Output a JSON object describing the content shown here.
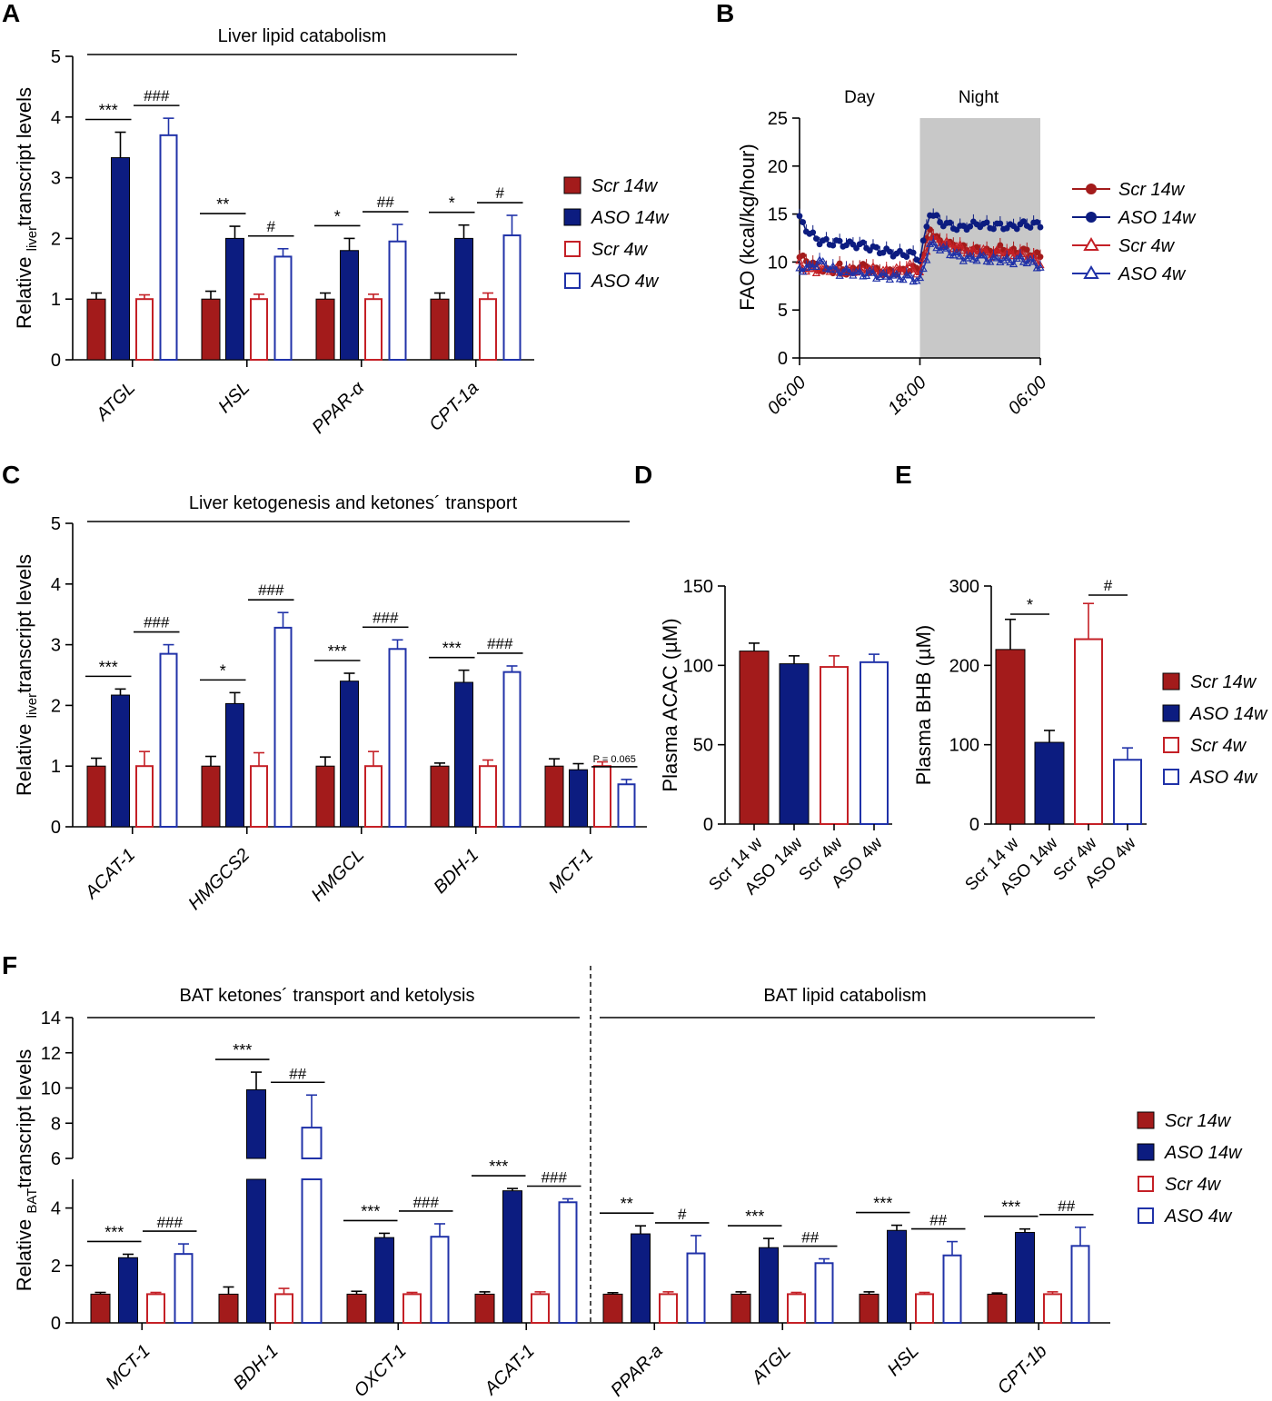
{
  "colors": {
    "scr14": "#a31b1b",
    "aso14": "#0c1c80",
    "scr4": "#c42026",
    "aso4": "#2032a8",
    "night": "#c8c8c8",
    "ink": "#000000"
  },
  "legend": [
    "Scr 14w",
    "ASO 14w",
    "Scr 4w",
    "ASO 4w"
  ],
  "chart_data": [
    {
      "id": "A",
      "type": "bar",
      "title": "Liver lipid catabolism",
      "ylabel_prefix": "Relative ",
      "ylabel_sub": "liver",
      "ylabel_suffix": "transcript levels",
      "ylim": [
        0,
        5
      ],
      "yticks": [
        "0",
        "1",
        "2",
        "3",
        "4",
        "5"
      ],
      "categories": [
        "ATGL",
        "HSL",
        "PPAR-α",
        "CPT-1a"
      ],
      "series": [
        {
          "name": "Scr 14w",
          "values": [
            1.0,
            1.0,
            1.0,
            1.0
          ],
          "err": [
            0.1,
            0.13,
            0.1,
            0.1
          ]
        },
        {
          "name": "ASO 14w",
          "values": [
            3.33,
            2.0,
            1.8,
            2.0
          ],
          "err": [
            0.42,
            0.2,
            0.2,
            0.22
          ]
        },
        {
          "name": "Scr 4w",
          "values": [
            1.0,
            1.0,
            1.0,
            1.0
          ],
          "err": [
            0.07,
            0.08,
            0.08,
            0.1
          ]
        },
        {
          "name": "ASO 4w",
          "values": [
            3.7,
            1.7,
            1.95,
            2.05
          ],
          "err": [
            0.28,
            0.13,
            0.28,
            0.33
          ]
        }
      ],
      "significance": [
        [
          "***",
          "###"
        ],
        [
          "**",
          "#"
        ],
        [
          "*",
          "##"
        ],
        [
          "*",
          "#"
        ]
      ]
    },
    {
      "id": "B",
      "type": "line",
      "ylabel": "FAO (kcal/kg/hour)",
      "ylim": [
        0,
        25
      ],
      "yticks": [
        "0",
        "5",
        "10",
        "15",
        "20",
        "25"
      ],
      "xticks": [
        "06:00",
        "18:00",
        "06:00"
      ],
      "day_label": "Day",
      "night_label": "Night",
      "night_range_hours": [
        12,
        24
      ],
      "series": [
        {
          "name": "Scr 14w",
          "marker": "circle",
          "fill": true,
          "keypoints": [
            [
              0,
              10.5
            ],
            [
              1,
              10.0
            ],
            [
              2,
              9.3
            ],
            [
              3,
              9.0
            ],
            [
              4,
              9.5
            ],
            [
              5,
              8.8
            ],
            [
              6,
              9.7
            ],
            [
              7,
              9.2
            ],
            [
              8,
              9.0
            ],
            [
              9,
              8.9
            ],
            [
              10,
              9.0
            ],
            [
              11,
              9.2
            ],
            [
              12,
              9.4
            ],
            [
              13,
              13.5
            ],
            [
              14,
              12.0
            ],
            [
              15,
              11.8
            ],
            [
              16,
              11.5
            ],
            [
              17,
              11.2
            ],
            [
              18,
              11.3
            ],
            [
              19,
              11.0
            ],
            [
              20,
              11.4
            ],
            [
              21,
              11.0
            ],
            [
              22,
              11.2
            ],
            [
              23,
              11.0
            ],
            [
              24,
              10.5
            ]
          ]
        },
        {
          "name": "ASO 14w",
          "marker": "circle",
          "fill": true,
          "keypoints": [
            [
              0,
              14.5
            ],
            [
              1,
              13.0
            ],
            [
              2,
              12.2
            ],
            [
              3,
              12.0
            ],
            [
              4,
              12.0
            ],
            [
              5,
              11.8
            ],
            [
              6,
              11.8
            ],
            [
              7,
              11.5
            ],
            [
              8,
              11.2
            ],
            [
              9,
              11.0
            ],
            [
              10,
              10.8
            ],
            [
              11,
              10.9
            ],
            [
              12,
              10.3
            ],
            [
              13,
              15.2
            ],
            [
              14,
              14.2
            ],
            [
              15,
              13.8
            ],
            [
              16,
              13.5
            ],
            [
              17,
              13.8
            ],
            [
              18,
              14.0
            ],
            [
              19,
              13.7
            ],
            [
              20,
              13.8
            ],
            [
              21,
              13.6
            ],
            [
              22,
              13.9
            ],
            [
              23,
              13.9
            ],
            [
              24,
              13.9
            ]
          ]
        },
        {
          "name": "Scr 4w",
          "marker": "triangle",
          "fill": false,
          "keypoints": [
            [
              0,
              9.8
            ],
            [
              1,
              9.0
            ],
            [
              2,
              9.2
            ],
            [
              3,
              9.3
            ],
            [
              4,
              9.0
            ],
            [
              5,
              9.2
            ],
            [
              6,
              9.0
            ],
            [
              7,
              9.3
            ],
            [
              8,
              9.0
            ],
            [
              9,
              9.0
            ],
            [
              10,
              9.2
            ],
            [
              11,
              9.5
            ],
            [
              12,
              8.8
            ],
            [
              13,
              12.5
            ],
            [
              14,
              12.0
            ],
            [
              15,
              11.8
            ],
            [
              16,
              11.5
            ],
            [
              17,
              11.0
            ],
            [
              18,
              11.2
            ],
            [
              19,
              10.8
            ],
            [
              20,
              11.0
            ],
            [
              21,
              10.9
            ],
            [
              22,
              10.8
            ],
            [
              23,
              10.5
            ],
            [
              24,
              10.0
            ]
          ]
        },
        {
          "name": "ASO 4w",
          "marker": "triangle",
          "fill": false,
          "keypoints": [
            [
              0,
              9.3
            ],
            [
              1,
              9.4
            ],
            [
              2,
              10.0
            ],
            [
              3,
              9.4
            ],
            [
              4,
              8.9
            ],
            [
              5,
              9.0
            ],
            [
              6,
              8.7
            ],
            [
              7,
              8.8
            ],
            [
              8,
              8.5
            ],
            [
              9,
              8.5
            ],
            [
              10,
              8.4
            ],
            [
              11,
              8.4
            ],
            [
              12,
              8.0
            ],
            [
              13,
              11.8
            ],
            [
              14,
              11.5
            ],
            [
              15,
              11.0
            ],
            [
              16,
              10.5
            ],
            [
              17,
              10.3
            ],
            [
              18,
              10.5
            ],
            [
              19,
              10.2
            ],
            [
              20,
              10.3
            ],
            [
              21,
              10.0
            ],
            [
              22,
              10.3
            ],
            [
              23,
              10.0
            ],
            [
              24,
              9.5
            ]
          ]
        }
      ]
    },
    {
      "id": "C",
      "type": "bar",
      "title": "Liver ketogenesis and ketones´ transport",
      "ylabel_prefix": "Relative ",
      "ylabel_sub": "liver",
      "ylabel_suffix": "transcript levels",
      "ylim": [
        0,
        5
      ],
      "yticks": [
        "0",
        "1",
        "2",
        "3",
        "4",
        "5"
      ],
      "categories": [
        "ACAT-1",
        "HMGCS2",
        "HMGCL",
        "BDH-1",
        "MCT-1"
      ],
      "series": [
        {
          "name": "Scr 14w",
          "values": [
            1.0,
            1.0,
            1.0,
            1.0,
            1.0
          ],
          "err": [
            0.13,
            0.16,
            0.15,
            0.05,
            0.12
          ]
        },
        {
          "name": "ASO 14w",
          "values": [
            2.17,
            2.03,
            2.4,
            2.38,
            0.94
          ]
        },
        {
          "name": "Scr 4w",
          "values": [
            1.0,
            1.0,
            1.0,
            1.0,
            1.0
          ]
        },
        {
          "name": "ASO 4w",
          "values": [
            2.85,
            3.28,
            2.93,
            2.55,
            0.7
          ]
        }
      ],
      "significance": [
        [
          "***",
          "###"
        ],
        [
          "*",
          "###"
        ],
        [
          "***",
          "###"
        ],
        [
          "***",
          "###"
        ],
        [
          "",
          "P = 0.065"
        ]
      ]
    },
    {
      "id": "D",
      "type": "bar",
      "ylabel": "Plasma ACAC (µM)",
      "ylim": [
        0,
        150
      ],
      "yticks": [
        "0",
        "50",
        "100",
        "150"
      ],
      "categories": [
        "Scr 14 w",
        "ASO 14w",
        "Scr 4w",
        "ASO 4w"
      ],
      "values": [
        109,
        101,
        99,
        102
      ],
      "err": [
        5,
        5,
        7,
        5
      ]
    },
    {
      "id": "E",
      "type": "bar",
      "ylabel": "Plasma BHB (µM)",
      "ylim": [
        0,
        300
      ],
      "yticks": [
        "0",
        "100",
        "200",
        "300"
      ],
      "categories": [
        "Scr 14 w",
        "ASO 14w",
        "Scr 4w",
        "ASO 4w"
      ],
      "values": [
        220,
        103,
        233,
        81
      ],
      "err": [
        38,
        15,
        45,
        15
      ],
      "significance": [
        "*",
        "#"
      ]
    },
    {
      "id": "F",
      "type": "bar",
      "title_left": "BAT ketones´ transport and ketolysis",
      "title_right": "BAT lipid catabolism",
      "ylabel_prefix": "Relative ",
      "ylabel_sub": "BAT",
      "ylabel_suffix": "transcript levels",
      "ylim": [
        0,
        14
      ],
      "axis_break": [
        5,
        6
      ],
      "yticks": [
        "0",
        "2",
        "4",
        "6",
        "8",
        "10",
        "12",
        "14"
      ],
      "categories": [
        "MCT-1",
        "BDH-1",
        "OXCT-1",
        "ACAT-1",
        "PPAR-a",
        "ATGL",
        "HSL",
        "CPT-1b"
      ],
      "series": [
        {
          "name": "Scr 14w",
          "values": [
            1.0,
            1.0,
            1.0,
            1.0,
            1.0,
            1.0,
            1.0,
            1.0
          ]
        },
        {
          "name": "ASO 14w",
          "values": [
            2.27,
            9.9,
            2.97,
            4.6,
            3.1,
            2.62,
            3.22,
            3.15
          ]
        },
        {
          "name": "Scr 4w",
          "values": [
            1.0,
            1.0,
            1.0,
            1.0,
            1.0,
            1.0,
            1.0,
            1.0
          ]
        },
        {
          "name": "ASO 4w",
          "values": [
            2.4,
            7.75,
            3.0,
            4.2,
            2.42,
            2.08,
            2.35,
            2.68
          ]
        }
      ],
      "significance": [
        [
          "***",
          "###"
        ],
        [
          "***",
          "##"
        ],
        [
          "***",
          "###"
        ],
        [
          "***",
          "###"
        ],
        [
          "**",
          "#"
        ],
        [
          "***",
          "##"
        ],
        [
          "***",
          "##"
        ],
        [
          "***",
          "##"
        ]
      ]
    }
  ],
  "panel_labels": [
    "A",
    "B",
    "C",
    "D",
    "E",
    "F"
  ]
}
